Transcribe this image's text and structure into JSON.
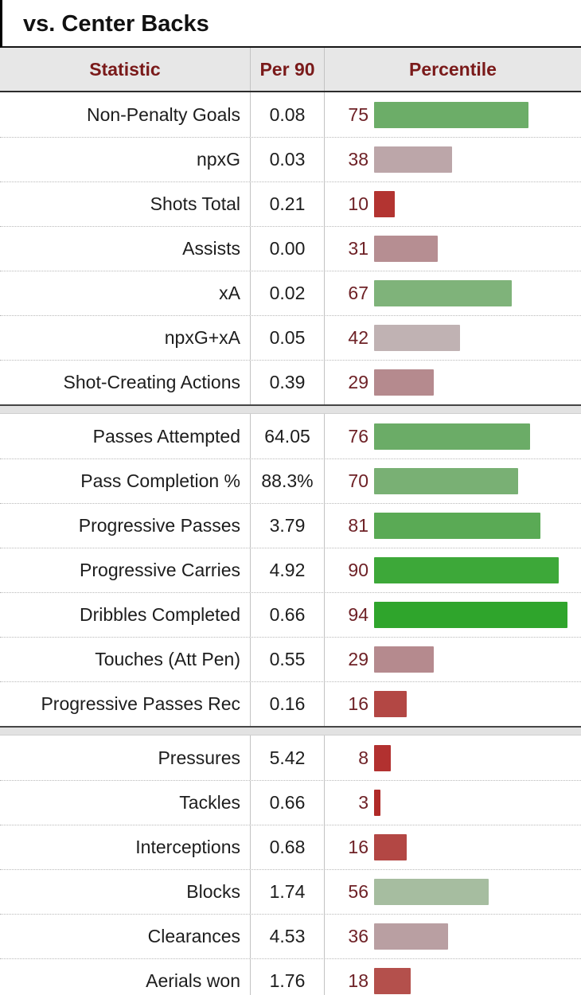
{
  "title": "vs. Center Backs",
  "headers": {
    "statistic": "Statistic",
    "per90": "Per 90",
    "percentile": "Percentile"
  },
  "colors": {
    "header_background": "#e7e7e7",
    "header_text": "#7a1a1a",
    "percentile_text": "#6e2126",
    "row_text": "#1d1d1d",
    "divider": "#c3c3c3",
    "dotted_separator": "#b9b9b9",
    "spacer_band": "#e2e2e2"
  },
  "chart_data": {
    "type": "table",
    "title": "vs. Center Backs",
    "columns": [
      "Statistic",
      "Per 90",
      "Percentile"
    ],
    "bar_scale": {
      "min": 0,
      "max": 100
    },
    "groups": [
      [
        {
          "statistic": "Non-Penalty Goals",
          "per90": "0.08",
          "percentile": 75,
          "bar_color": "#6cad68"
        },
        {
          "statistic": "npxG",
          "per90": "0.03",
          "percentile": 38,
          "bar_color": "#bca6a9"
        },
        {
          "statistic": "Shots Total",
          "per90": "0.21",
          "percentile": 10,
          "bar_color": "#b33431"
        },
        {
          "statistic": "Assists",
          "per90": "0.00",
          "percentile": 31,
          "bar_color": "#b68e92"
        },
        {
          "statistic": "xA",
          "per90": "0.02",
          "percentile": 67,
          "bar_color": "#7fb37a"
        },
        {
          "statistic": "npxG+xA",
          "per90": "0.05",
          "percentile": 42,
          "bar_color": "#c0b2b3"
        },
        {
          "statistic": "Shot-Creating Actions",
          "per90": "0.39",
          "percentile": 29,
          "bar_color": "#b58a8e"
        }
      ],
      [
        {
          "statistic": "Passes Attempted",
          "per90": "64.05",
          "percentile": 76,
          "bar_color": "#6bac67"
        },
        {
          "statistic": "Pass Completion %",
          "per90": "88.3%",
          "percentile": 70,
          "bar_color": "#79b074"
        },
        {
          "statistic": "Progressive Passes",
          "per90": "3.79",
          "percentile": 81,
          "bar_color": "#5aaa55"
        },
        {
          "statistic": "Progressive Carries",
          "per90": "4.92",
          "percentile": 90,
          "bar_color": "#3da839"
        },
        {
          "statistic": "Dribbles Completed",
          "per90": "0.66",
          "percentile": 94,
          "bar_color": "#2fa52c"
        },
        {
          "statistic": "Touches (Att Pen)",
          "per90": "0.55",
          "percentile": 29,
          "bar_color": "#b58a8e"
        },
        {
          "statistic": "Progressive Passes Rec",
          "per90": "0.16",
          "percentile": 16,
          "bar_color": "#b34744"
        }
      ],
      [
        {
          "statistic": "Pressures",
          "per90": "5.42",
          "percentile": 8,
          "bar_color": "#b23130"
        },
        {
          "statistic": "Tackles",
          "per90": "0.66",
          "percentile": 3,
          "bar_color": "#b02a28"
        },
        {
          "statistic": "Interceptions",
          "per90": "0.68",
          "percentile": 16,
          "bar_color": "#b34744"
        },
        {
          "statistic": "Blocks",
          "per90": "1.74",
          "percentile": 56,
          "bar_color": "#a6bda0"
        },
        {
          "statistic": "Clearances",
          "per90": "4.53",
          "percentile": 36,
          "bar_color": "#b99fa2"
        },
        {
          "statistic": "Aerials won",
          "per90": "1.76",
          "percentile": 18,
          "bar_color": "#b4504c"
        }
      ]
    ]
  }
}
